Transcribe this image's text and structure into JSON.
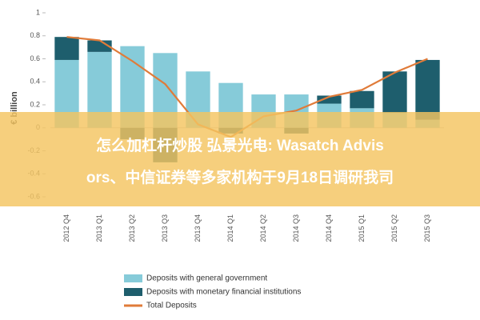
{
  "chart_data": {
    "type": "bar",
    "y_label": "€ billion",
    "categories": [
      "2012 Q4",
      "2013 Q1",
      "2013 Q2",
      "2013 Q3",
      "2013 Q4",
      "2014 Q1",
      "2014 Q2",
      "2014 Q3",
      "2014 Q4",
      "2015 Q1",
      "2015 Q2",
      "2015 Q3"
    ],
    "series": [
      {
        "name": "Deposits with general government",
        "color": "#86cbd9",
        "values": [
          0.59,
          0.66,
          0.71,
          0.65,
          0.49,
          0.39,
          0.29,
          0.29,
          0.21,
          0.17,
          0.13,
          0.07
        ]
      },
      {
        "name": "Deposits with monetary financial institutions",
        "color": "#1e5e6d",
        "values": [
          0.2,
          0.1,
          -0.1,
          -0.3,
          0,
          -0.05,
          0,
          -0.05,
          0.07,
          0.15,
          0.36,
          0.52
        ]
      },
      {
        "name": "Total Deposits",
        "type": "line",
        "color": "#e07b39",
        "values": [
          0.79,
          0.76,
          0.58,
          0.38,
          0.03,
          -0.08,
          0.1,
          0.15,
          0.27,
          0.33,
          0.48,
          0.6
        ]
      }
    ],
    "ylim": [
      -0.6,
      1
    ],
    "yticks": [
      -0.6,
      -0.4,
      -0.2,
      0,
      0.2,
      0.4,
      0.6,
      0.8,
      1
    ],
    "overlay_text": [
      "怎么加杠杆炒股 弘景光电: Wasatch Advis",
      "ors、中信证券等多家机构于9月18日调研我司"
    ]
  }
}
